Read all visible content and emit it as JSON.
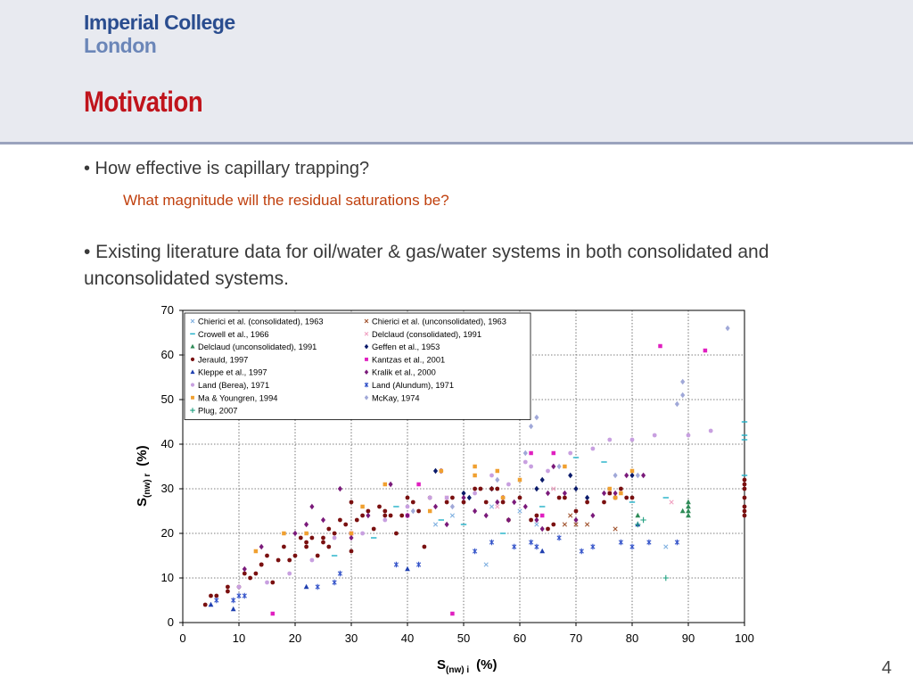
{
  "header": {
    "logo_line1": "Imperial College",
    "logo_line2": "London",
    "title": "Motivation"
  },
  "content": {
    "bullet1": "• How effective is capillary trapping?",
    "sub1": "What magnitude will the residual saturations be?",
    "bullet2": "• Existing literature data for oil/water & gas/water systems in both consolidated and unconsolidated systems."
  },
  "page_number": "4",
  "chart_data": {
    "type": "scatter",
    "xlabel_main": "S",
    "xlabel_sub": "(nw) i",
    "xlabel_unit": "(%)",
    "ylabel_main": "S",
    "ylabel_sub": "(nw) r",
    "ylabel_unit": "(%)",
    "xlim": [
      0,
      100
    ],
    "ylim": [
      0,
      70
    ],
    "xticks": [
      "0",
      "10",
      "20",
      "30",
      "40",
      "50",
      "60",
      "70",
      "80",
      "90",
      "100"
    ],
    "yticks": [
      "0",
      "10",
      "20",
      "30",
      "40",
      "50",
      "60",
      "70"
    ],
    "grid": "dotted",
    "legend_position": "top-left",
    "series": [
      {
        "name": "Chierici et al. (consolidated), 1963",
        "marker": "x",
        "color": "#7fb0e0",
        "points": [
          [
            54,
            13
          ],
          [
            86,
            17
          ],
          [
            60,
            25
          ],
          [
            63,
            22
          ],
          [
            55,
            26
          ],
          [
            45,
            22
          ],
          [
            48,
            24
          ]
        ]
      },
      {
        "name": "Chierici et al. (unconsolidated), 1963",
        "marker": "x",
        "color": "#a0522d",
        "points": [
          [
            68,
            22
          ],
          [
            70,
            22
          ],
          [
            72,
            22
          ],
          [
            77,
            21
          ],
          [
            69,
            24
          ]
        ]
      },
      {
        "name": "Crowell et al., 1966",
        "marker": "dash",
        "color": "#20b0c8",
        "points": [
          [
            100,
            45
          ],
          [
            100,
            42
          ],
          [
            100,
            41
          ],
          [
            100,
            33
          ],
          [
            86,
            28
          ],
          [
            64,
            26
          ],
          [
            75,
            36
          ],
          [
            80,
            27
          ],
          [
            57,
            20
          ],
          [
            50,
            22
          ],
          [
            38,
            26
          ],
          [
            46,
            23
          ],
          [
            34,
            19
          ],
          [
            27,
            15
          ],
          [
            70,
            37
          ]
        ]
      },
      {
        "name": "Delclaud (consolidated), 1991",
        "marker": "x",
        "color": "#f0a0c0",
        "points": [
          [
            87,
            27
          ],
          [
            76,
            29
          ],
          [
            66,
            30
          ],
          [
            56,
            26
          ],
          [
            47,
            28
          ]
        ]
      },
      {
        "name": "Delclaud (unconsolidated), 1991",
        "marker": "triangle",
        "color": "#2e8b57",
        "points": [
          [
            90,
            27
          ],
          [
            90,
            26
          ],
          [
            90,
            25
          ],
          [
            90,
            24
          ],
          [
            89,
            25
          ],
          [
            81,
            24
          ]
        ]
      },
      {
        "name": "Geffen et al., 1953",
        "marker": "diamond",
        "color": "#0a1a6a",
        "points": [
          [
            45,
            34
          ],
          [
            50,
            29
          ],
          [
            51,
            28
          ],
          [
            55,
            30
          ],
          [
            64,
            32
          ],
          [
            69,
            33
          ],
          [
            70,
            30
          ],
          [
            72,
            28
          ],
          [
            63,
            30
          ],
          [
            80,
            33
          ]
        ]
      },
      {
        "name": "Jerauld, 1997",
        "marker": "circle",
        "color": "#7a1010",
        "points": [
          [
            4,
            4
          ],
          [
            5,
            6
          ],
          [
            6,
            6
          ],
          [
            8,
            8
          ],
          [
            8,
            7
          ],
          [
            10,
            8
          ],
          [
            11,
            11
          ],
          [
            13,
            11
          ],
          [
            14,
            13
          ],
          [
            15,
            15
          ],
          [
            16,
            9
          ],
          [
            17,
            14
          ],
          [
            18,
            17
          ],
          [
            19,
            14
          ],
          [
            20,
            15
          ],
          [
            21,
            19
          ],
          [
            22,
            18
          ],
          [
            22,
            17
          ],
          [
            23,
            19
          ],
          [
            25,
            18
          ],
          [
            25,
            19
          ],
          [
            26,
            21
          ],
          [
            27,
            20
          ],
          [
            28,
            23
          ],
          [
            29,
            22
          ],
          [
            30,
            27
          ],
          [
            30,
            16
          ],
          [
            31,
            23
          ],
          [
            32,
            24
          ],
          [
            33,
            25
          ],
          [
            34,
            21
          ],
          [
            35,
            26
          ],
          [
            36,
            25
          ],
          [
            37,
            24
          ],
          [
            38,
            20
          ],
          [
            39,
            24
          ],
          [
            40,
            28
          ],
          [
            41,
            27
          ],
          [
            42,
            25
          ],
          [
            43,
            17
          ],
          [
            44,
            28
          ],
          [
            47,
            27
          ],
          [
            48,
            28
          ],
          [
            50,
            27
          ],
          [
            52,
            30
          ],
          [
            53,
            30
          ],
          [
            54,
            27
          ],
          [
            55,
            30
          ],
          [
            56,
            30
          ],
          [
            57,
            27
          ],
          [
            58,
            23
          ],
          [
            60,
            28
          ],
          [
            62,
            23
          ],
          [
            63,
            24
          ],
          [
            65,
            21
          ],
          [
            66,
            22
          ],
          [
            67,
            28
          ],
          [
            68,
            28
          ],
          [
            70,
            25
          ],
          [
            72,
            27
          ],
          [
            75,
            27
          ],
          [
            76,
            29
          ],
          [
            77,
            28
          ],
          [
            78,
            30
          ],
          [
            79,
            28
          ],
          [
            80,
            28
          ],
          [
            100,
            32
          ],
          [
            100,
            31
          ],
          [
            100,
            30
          ],
          [
            100,
            28
          ],
          [
            100,
            26
          ],
          [
            100,
            25
          ],
          [
            100,
            24
          ],
          [
            24,
            15
          ],
          [
            26,
            17
          ],
          [
            36,
            24
          ],
          [
            12,
            10
          ],
          [
            14,
            13
          ]
        ]
      },
      {
        "name": "Kantzas et al., 2001",
        "marker": "square",
        "color": "#e020c0",
        "points": [
          [
            85,
            62
          ],
          [
            93,
            61
          ],
          [
            16,
            2
          ],
          [
            48,
            2
          ],
          [
            42,
            31
          ],
          [
            62,
            38
          ],
          [
            66,
            38
          ],
          [
            64,
            24
          ],
          [
            40,
            24
          ],
          [
            30,
            20
          ]
        ]
      },
      {
        "name": "Kleppe et al., 1997",
        "marker": "triangle",
        "color": "#2040b0",
        "points": [
          [
            5,
            4
          ],
          [
            9,
            3
          ],
          [
            22,
            8
          ],
          [
            40,
            12
          ],
          [
            64,
            16
          ],
          [
            81,
            22
          ]
        ]
      },
      {
        "name": "Kralik et al., 2000",
        "marker": "diamond",
        "color": "#7a1a7a",
        "points": [
          [
            11,
            12
          ],
          [
            14,
            17
          ],
          [
            20,
            20
          ],
          [
            22,
            22
          ],
          [
            23,
            26
          ],
          [
            25,
            23
          ],
          [
            28,
            30
          ],
          [
            30,
            19
          ],
          [
            33,
            24
          ],
          [
            37,
            31
          ],
          [
            40,
            24
          ],
          [
            45,
            26
          ],
          [
            46,
            34
          ],
          [
            50,
            28
          ],
          [
            52,
            25
          ],
          [
            54,
            24
          ],
          [
            56,
            27
          ],
          [
            58,
            23
          ],
          [
            59,
            27
          ],
          [
            61,
            26
          ],
          [
            63,
            23
          ],
          [
            64,
            21
          ],
          [
            66,
            35
          ],
          [
            68,
            29
          ],
          [
            70,
            23
          ],
          [
            73,
            24
          ],
          [
            75,
            29
          ],
          [
            77,
            29
          ],
          [
            79,
            33
          ],
          [
            82,
            33
          ],
          [
            65,
            29
          ],
          [
            57,
            28
          ],
          [
            47,
            22
          ]
        ]
      },
      {
        "name": "Land (Berea), 1971",
        "marker": "circle",
        "color": "#c8a0e0",
        "points": [
          [
            10,
            8
          ],
          [
            15,
            9
          ],
          [
            19,
            11
          ],
          [
            23,
            14
          ],
          [
            27,
            19
          ],
          [
            32,
            20
          ],
          [
            36,
            23
          ],
          [
            40,
            26
          ],
          [
            44,
            28
          ],
          [
            47,
            28
          ],
          [
            52,
            29
          ],
          [
            55,
            33
          ],
          [
            58,
            31
          ],
          [
            62,
            35
          ],
          [
            65,
            34
          ],
          [
            69,
            38
          ],
          [
            73,
            39
          ],
          [
            76,
            41
          ],
          [
            80,
            41
          ],
          [
            84,
            42
          ],
          [
            90,
            42
          ],
          [
            94,
            43
          ],
          [
            61,
            36
          ]
        ]
      },
      {
        "name": "Land (Alundum), 1971",
        "marker": "star",
        "color": "#3050c8",
        "points": [
          [
            6,
            5
          ],
          [
            9,
            5
          ],
          [
            10,
            6
          ],
          [
            11,
            6
          ],
          [
            24,
            8
          ],
          [
            27,
            9
          ],
          [
            28,
            11
          ],
          [
            38,
            13
          ],
          [
            42,
            13
          ],
          [
            52,
            16
          ],
          [
            55,
            18
          ],
          [
            59,
            17
          ],
          [
            62,
            18
          ],
          [
            63,
            17
          ],
          [
            67,
            19
          ],
          [
            71,
            16
          ],
          [
            73,
            17
          ],
          [
            78,
            18
          ],
          [
            80,
            17
          ],
          [
            83,
            18
          ],
          [
            88,
            18
          ]
        ]
      },
      {
        "name": "Ma & Youngren, 1994",
        "marker": "square",
        "color": "#f0a030",
        "points": [
          [
            13,
            16
          ],
          [
            18,
            20
          ],
          [
            22,
            20
          ],
          [
            30,
            20
          ],
          [
            32,
            26
          ],
          [
            36,
            31
          ],
          [
            44,
            25
          ],
          [
            46,
            34
          ],
          [
            52,
            35
          ],
          [
            52,
            33
          ],
          [
            56,
            34
          ],
          [
            57,
            28
          ],
          [
            60,
            32
          ],
          [
            68,
            35
          ],
          [
            76,
            30
          ],
          [
            77,
            28
          ],
          [
            78,
            29
          ],
          [
            80,
            34
          ]
        ]
      },
      {
        "name": "McKay, 1974",
        "marker": "diamond",
        "color": "#a0a8d8",
        "points": [
          [
            97,
            66
          ],
          [
            89,
            54
          ],
          [
            89,
            51
          ],
          [
            88,
            49
          ],
          [
            81,
            33
          ],
          [
            77,
            33
          ],
          [
            67,
            35
          ],
          [
            63,
            46
          ],
          [
            62,
            44
          ],
          [
            61,
            38
          ],
          [
            56,
            32
          ],
          [
            48,
            26
          ],
          [
            41,
            25
          ]
        ]
      },
      {
        "name": "Plug, 2007",
        "marker": "plus",
        "color": "#20a080",
        "points": [
          [
            86,
            10
          ],
          [
            81,
            22
          ],
          [
            82,
            23
          ]
        ]
      }
    ]
  }
}
